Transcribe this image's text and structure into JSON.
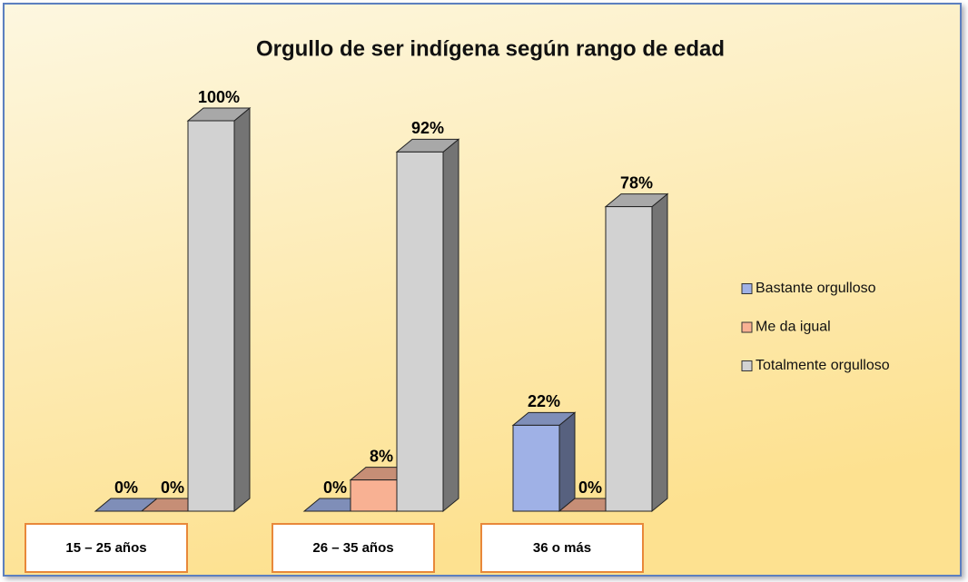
{
  "chart_data": {
    "type": "bar3d",
    "title": "Orgullo de ser indígena según rango de edad",
    "categories": [
      "15 – 25 años",
      "26 – 35 años",
      "36 o más"
    ],
    "series": [
      {
        "name": "Bastante orgulloso",
        "color": "#9fb1e6",
        "values": [
          0,
          0,
          22
        ],
        "value_labels": [
          "0%",
          "0%",
          "22%"
        ]
      },
      {
        "name": "Me da igual",
        "color": "#f8b193",
        "values": [
          0,
          8,
          0
        ],
        "value_labels": [
          "0%",
          "8%",
          "0%"
        ]
      },
      {
        "name": "Totalmente orgulloso",
        "color": "#d2d2d2",
        "values": [
          100,
          92,
          78
        ],
        "value_labels": [
          "100%",
          "92%",
          "78%"
        ]
      }
    ],
    "legend": "right"
  }
}
